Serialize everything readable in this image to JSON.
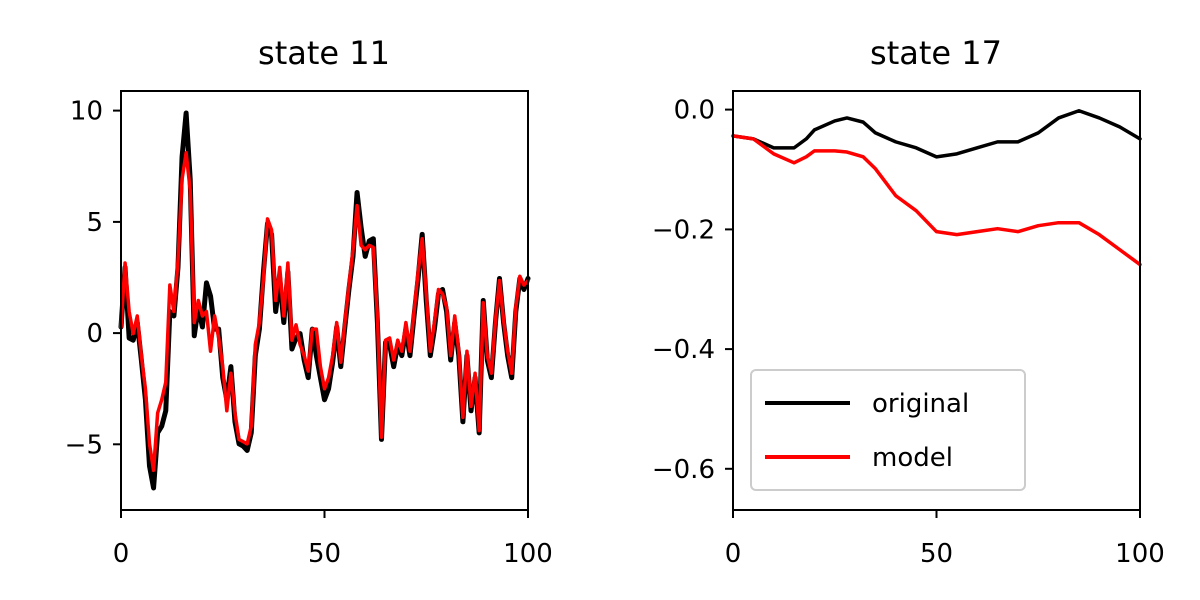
{
  "chart_data": [
    {
      "type": "line",
      "title": "state 11",
      "xlabel": "",
      "ylabel": "",
      "xlim": [
        0,
        100
      ],
      "ylim": [
        -8,
        11
      ],
      "xticks": [
        "0",
        "50",
        "100"
      ],
      "yticks": [
        "−5",
        "0",
        "5",
        "10"
      ],
      "grid": false,
      "series": [
        {
          "color": "#000000",
          "x": [
            0,
            1,
            2,
            3,
            4,
            5,
            6,
            7,
            8,
            9,
            10,
            11,
            12,
            13,
            14,
            15,
            16,
            17,
            18,
            19,
            20,
            21,
            22,
            23,
            24,
            25,
            26,
            27,
            28,
            29,
            30,
            31,
            32,
            33,
            34,
            35,
            36,
            37,
            38,
            39,
            40,
            41,
            42,
            43,
            44,
            45,
            46,
            47,
            48,
            49,
            50,
            51,
            52,
            53,
            54,
            55,
            56,
            57,
            58,
            59,
            60,
            61,
            62,
            63,
            64,
            65,
            66,
            67,
            68,
            69,
            70,
            71,
            72,
            73,
            74,
            75,
            76,
            77,
            78,
            79,
            80,
            81,
            82,
            83,
            84,
            85,
            86,
            87,
            88,
            89,
            90,
            91,
            92,
            93,
            94,
            95,
            96,
            97,
            98,
            99,
            100
          ],
          "values": [
            0.3,
            3.0,
            -0.2,
            -0.3,
            0.5,
            -1.2,
            -3.0,
            -6.0,
            -7.0,
            -4.5,
            -4.2,
            -3.5,
            1.0,
            0.8,
            3.0,
            8.0,
            10.0,
            7.0,
            -0.1,
            1.2,
            0.3,
            2.3,
            1.7,
            0.2,
            0.2,
            -2.0,
            -3.0,
            -1.5,
            -4.0,
            -5.0,
            -5.1,
            -5.3,
            -4.5,
            -1.0,
            0.2,
            2.8,
            5.0,
            4.5,
            1.0,
            2.5,
            0.5,
            2.8,
            -0.7,
            -0.2,
            0.0,
            -1.2,
            -2.0,
            0.2,
            -1.0,
            -2.0,
            -3.0,
            -2.5,
            -1.3,
            0.3,
            -1.5,
            0.3,
            2.0,
            3.5,
            6.4,
            4.8,
            3.5,
            4.2,
            4.3,
            0.5,
            -4.8,
            -0.4,
            -0.5,
            -1.5,
            -0.5,
            -1.0,
            0.2,
            -1.0,
            0.8,
            2.5,
            4.5,
            1.5,
            -1.0,
            0.2,
            1.8,
            2.0,
            1.0,
            -1.2,
            0.5,
            -1.0,
            -4.0,
            -1.0,
            -3.5,
            -2.0,
            -4.5,
            1.5,
            -1.2,
            -2.0,
            0.5,
            2.5,
            0.5,
            -1.0,
            -2.0,
            1.0,
            2.5,
            2.0,
            2.5
          ]
        },
        {
          "color": "#ff0000",
          "x": [
            0,
            1,
            2,
            3,
            4,
            5,
            6,
            7,
            8,
            9,
            10,
            11,
            12,
            13,
            14,
            15,
            16,
            17,
            18,
            19,
            20,
            21,
            22,
            23,
            24,
            25,
            26,
            27,
            28,
            29,
            30,
            31,
            32,
            33,
            34,
            35,
            36,
            37,
            38,
            39,
            40,
            41,
            42,
            43,
            44,
            45,
            46,
            47,
            48,
            49,
            50,
            51,
            52,
            53,
            54,
            55,
            56,
            57,
            58,
            59,
            60,
            61,
            62,
            63,
            64,
            65,
            66,
            67,
            68,
            69,
            70,
            71,
            72,
            73,
            74,
            75,
            76,
            77,
            78,
            79,
            80,
            81,
            82,
            83,
            84,
            85,
            86,
            87,
            88,
            89,
            90,
            91,
            92,
            93,
            94,
            95,
            96,
            97,
            98,
            99,
            100
          ],
          "values": [
            0.3,
            3.2,
            1.0,
            0.0,
            0.8,
            -1.0,
            -2.5,
            -5.0,
            -6.2,
            -3.6,
            -3.0,
            -2.2,
            2.2,
            1.0,
            3.3,
            7.0,
            8.2,
            6.5,
            0.5,
            1.5,
            0.8,
            1.0,
            -0.8,
            0.8,
            -0.2,
            -1.5,
            -3.5,
            -1.8,
            -3.6,
            -4.8,
            -4.9,
            -5.0,
            -4.2,
            -0.5,
            0.5,
            2.5,
            5.2,
            4.7,
            1.5,
            3.0,
            0.8,
            3.2,
            -0.3,
            0.4,
            -0.5,
            -1.0,
            -1.7,
            0.2,
            0.2,
            -1.5,
            -2.5,
            -2.0,
            -1.0,
            0.5,
            -1.3,
            0.5,
            2.2,
            3.8,
            5.8,
            4.0,
            3.8,
            4.0,
            3.9,
            0.8,
            -4.7,
            -0.3,
            -0.2,
            -1.2,
            -0.3,
            -0.8,
            0.5,
            -0.8,
            1.0,
            2.8,
            4.3,
            1.8,
            -0.8,
            0.5,
            2.0,
            1.8,
            1.2,
            -1.0,
            0.8,
            -0.8,
            -3.8,
            -0.8,
            -3.3,
            -1.8,
            -4.4,
            1.4,
            -1.0,
            -1.8,
            0.6,
            2.4,
            0.6,
            -0.8,
            -1.8,
            1.2,
            2.6,
            2.2,
            2.4
          ]
        }
      ]
    },
    {
      "type": "line",
      "title": "state 17",
      "xlabel": "",
      "ylabel": "",
      "xlim": [
        0,
        100
      ],
      "ylim": [
        -0.67,
        0.03
      ],
      "xticks": [
        "0",
        "50",
        "100"
      ],
      "yticks": [
        "−0.6",
        "−0.4",
        "−0.2",
        "0.0"
      ],
      "grid": false,
      "legend": {
        "placement": "lower-left",
        "entries": [
          {
            "label": "original",
            "color": "#000000"
          },
          {
            "label": "model",
            "color": "#ff0000"
          }
        ]
      },
      "series": [
        {
          "name": "original",
          "color": "#000000",
          "x": [
            0,
            5,
            10,
            15,
            18,
            20,
            25,
            28,
            32,
            35,
            40,
            45,
            50,
            55,
            60,
            65,
            70,
            75,
            80,
            85,
            90,
            95,
            100
          ],
          "values": [
            -0.045,
            -0.05,
            -0.065,
            -0.065,
            -0.05,
            -0.035,
            -0.02,
            -0.015,
            -0.022,
            -0.04,
            -0.055,
            -0.065,
            -0.08,
            -0.075,
            -0.065,
            -0.055,
            -0.055,
            -0.04,
            -0.015,
            -0.003,
            -0.015,
            -0.03,
            -0.05
          ]
        },
        {
          "name": "model",
          "color": "#ff0000",
          "x": [
            0,
            5,
            10,
            15,
            18,
            20,
            25,
            28,
            32,
            35,
            40,
            45,
            50,
            55,
            60,
            65,
            70,
            75,
            80,
            85,
            90,
            95,
            100
          ],
          "values": [
            -0.045,
            -0.05,
            -0.075,
            -0.09,
            -0.08,
            -0.07,
            -0.07,
            -0.072,
            -0.08,
            -0.1,
            -0.145,
            -0.17,
            -0.205,
            -0.21,
            -0.205,
            -0.2,
            -0.205,
            -0.195,
            -0.19,
            -0.19,
            -0.21,
            -0.235,
            -0.26
          ]
        }
      ]
    }
  ]
}
